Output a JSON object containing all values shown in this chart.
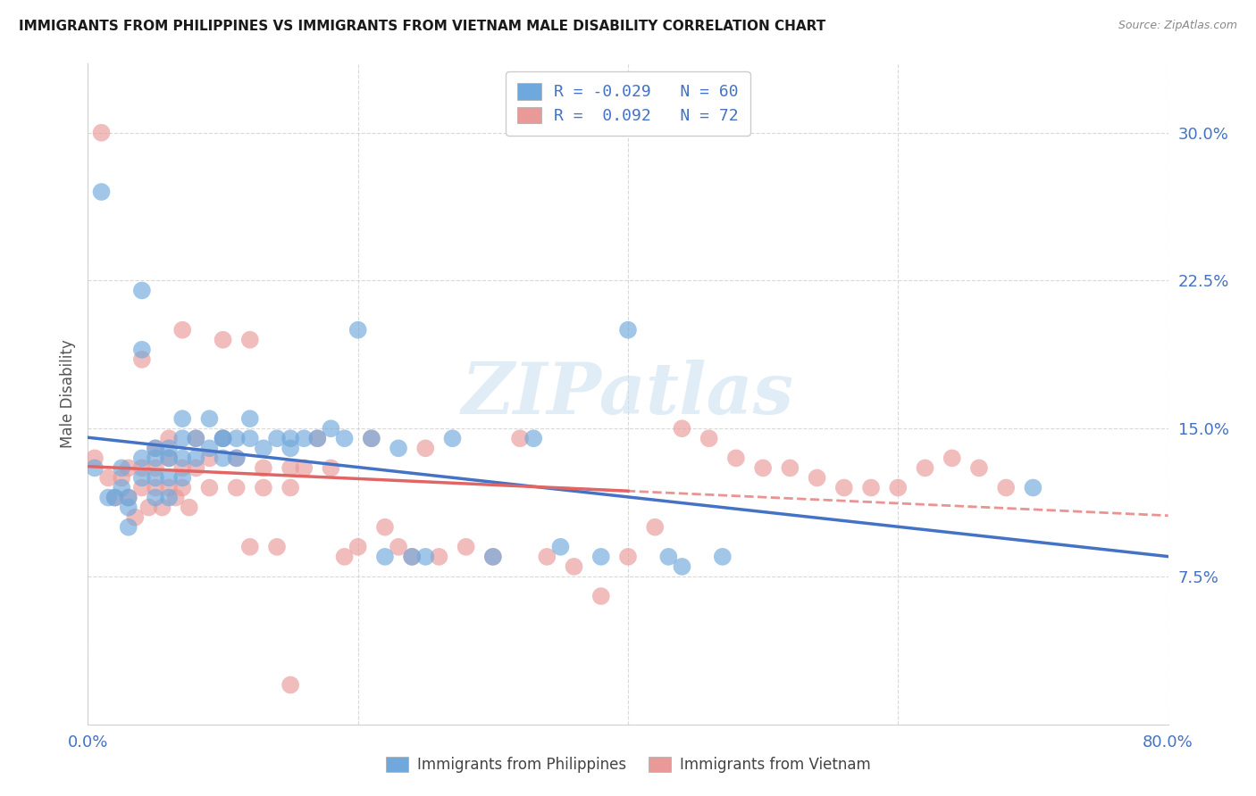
{
  "title": "IMMIGRANTS FROM PHILIPPINES VS IMMIGRANTS FROM VIETNAM MALE DISABILITY CORRELATION CHART",
  "source": "Source: ZipAtlas.com",
  "ylabel": "Male Disability",
  "xlim": [
    0.0,
    0.8
  ],
  "ylim": [
    0.0,
    0.335
  ],
  "yticks": [
    0.075,
    0.15,
    0.225,
    0.3
  ],
  "ytick_labels": [
    "7.5%",
    "15.0%",
    "22.5%",
    "30.0%"
  ],
  "xticks": [
    0.0,
    0.2,
    0.4,
    0.6,
    0.8
  ],
  "xtick_labels": [
    "0.0%",
    "",
    "",
    "",
    "80.0%"
  ],
  "color_blue": "#6fa8dc",
  "color_pink": "#ea9999",
  "color_blue_line": "#4472c4",
  "color_pink_line": "#e06666",
  "color_axis": "#4472c4",
  "watermark": "ZIPatlas",
  "legend_line1": "R = -0.029   N = 60",
  "legend_line2": "R =  0.092   N = 72",
  "philippines_x": [
    0.005,
    0.01,
    0.015,
    0.02,
    0.025,
    0.025,
    0.03,
    0.03,
    0.03,
    0.04,
    0.04,
    0.04,
    0.04,
    0.05,
    0.05,
    0.05,
    0.05,
    0.06,
    0.06,
    0.06,
    0.06,
    0.07,
    0.07,
    0.07,
    0.07,
    0.08,
    0.08,
    0.09,
    0.09,
    0.1,
    0.1,
    0.1,
    0.11,
    0.11,
    0.12,
    0.12,
    0.13,
    0.14,
    0.15,
    0.15,
    0.16,
    0.17,
    0.18,
    0.19,
    0.2,
    0.21,
    0.22,
    0.23,
    0.24,
    0.25,
    0.27,
    0.3,
    0.33,
    0.35,
    0.38,
    0.4,
    0.43,
    0.44,
    0.47,
    0.7
  ],
  "philippines_y": [
    0.13,
    0.27,
    0.115,
    0.115,
    0.13,
    0.12,
    0.115,
    0.11,
    0.1,
    0.22,
    0.19,
    0.135,
    0.125,
    0.14,
    0.135,
    0.125,
    0.115,
    0.14,
    0.135,
    0.125,
    0.115,
    0.155,
    0.145,
    0.135,
    0.125,
    0.145,
    0.135,
    0.155,
    0.14,
    0.145,
    0.135,
    0.145,
    0.145,
    0.135,
    0.155,
    0.145,
    0.14,
    0.145,
    0.145,
    0.14,
    0.145,
    0.145,
    0.15,
    0.145,
    0.2,
    0.145,
    0.085,
    0.14,
    0.085,
    0.085,
    0.145,
    0.085,
    0.145,
    0.09,
    0.085,
    0.2,
    0.085,
    0.08,
    0.085,
    0.12
  ],
  "vietnam_x": [
    0.005,
    0.01,
    0.015,
    0.02,
    0.025,
    0.03,
    0.03,
    0.035,
    0.04,
    0.04,
    0.04,
    0.045,
    0.05,
    0.05,
    0.05,
    0.055,
    0.06,
    0.06,
    0.06,
    0.065,
    0.07,
    0.07,
    0.07,
    0.075,
    0.08,
    0.08,
    0.09,
    0.09,
    0.1,
    0.1,
    0.11,
    0.11,
    0.12,
    0.12,
    0.13,
    0.13,
    0.14,
    0.15,
    0.15,
    0.16,
    0.17,
    0.18,
    0.19,
    0.2,
    0.21,
    0.22,
    0.23,
    0.24,
    0.25,
    0.26,
    0.28,
    0.3,
    0.32,
    0.34,
    0.36,
    0.38,
    0.4,
    0.42,
    0.44,
    0.46,
    0.48,
    0.5,
    0.52,
    0.54,
    0.56,
    0.58,
    0.6,
    0.62,
    0.64,
    0.66,
    0.68,
    0.15
  ],
  "vietnam_y": [
    0.135,
    0.3,
    0.125,
    0.115,
    0.125,
    0.13,
    0.115,
    0.105,
    0.185,
    0.13,
    0.12,
    0.11,
    0.14,
    0.13,
    0.12,
    0.11,
    0.145,
    0.135,
    0.12,
    0.115,
    0.2,
    0.13,
    0.12,
    0.11,
    0.145,
    0.13,
    0.135,
    0.12,
    0.145,
    0.195,
    0.135,
    0.12,
    0.195,
    0.09,
    0.13,
    0.12,
    0.09,
    0.13,
    0.12,
    0.13,
    0.145,
    0.13,
    0.085,
    0.09,
    0.145,
    0.1,
    0.09,
    0.085,
    0.14,
    0.085,
    0.09,
    0.085,
    0.145,
    0.085,
    0.08,
    0.065,
    0.085,
    0.1,
    0.15,
    0.145,
    0.135,
    0.13,
    0.13,
    0.125,
    0.12,
    0.12,
    0.12,
    0.13,
    0.135,
    0.13,
    0.12,
    0.02
  ]
}
